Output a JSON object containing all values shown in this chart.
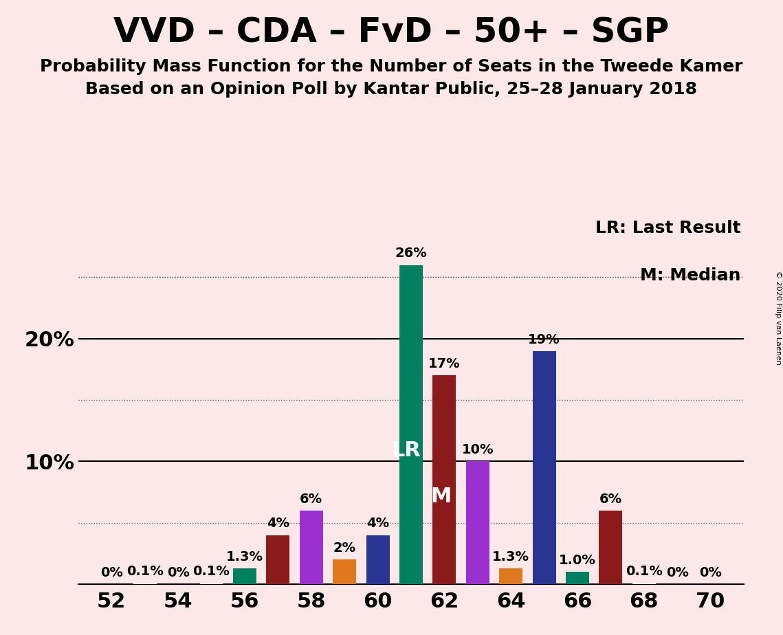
{
  "title": "VVD – CDA – FvD – 50+ – SGP",
  "subtitle1": "Probability Mass Function for the Number of Seats in the Tweede Kamer",
  "subtitle2": "Based on an Opinion Poll by Kantar Public, 25–28 January 2018",
  "copyright": "© 2020 Filip van Laenen",
  "legend_lr": "LR: Last Result",
  "legend_m": "M: Median",
  "background_color": "#fce8e8",
  "bars": [
    {
      "seat": 52,
      "value": 0.0,
      "color": "#fce8e8",
      "label": "0%",
      "lr": false,
      "median": false
    },
    {
      "seat": 53,
      "value": 0.1,
      "color": "#fce8e8",
      "label": "0.1%",
      "lr": false,
      "median": false
    },
    {
      "seat": 54,
      "value": 0.0,
      "color": "#fce8e8",
      "label": "0%",
      "lr": false,
      "median": false
    },
    {
      "seat": 55,
      "value": 0.1,
      "color": "#fce8e8",
      "label": "0.1%",
      "lr": false,
      "median": false
    },
    {
      "seat": 56,
      "value": 1.3,
      "color": "#008060",
      "label": "1.3%",
      "lr": false,
      "median": false
    },
    {
      "seat": 57,
      "value": 4.0,
      "color": "#8b1a1a",
      "label": "4%",
      "lr": false,
      "median": false
    },
    {
      "seat": 58,
      "value": 6.0,
      "color": "#9b30d0",
      "label": "6%",
      "lr": false,
      "median": false
    },
    {
      "seat": 59,
      "value": 2.0,
      "color": "#e07820",
      "label": "2%",
      "lr": false,
      "median": false
    },
    {
      "seat": 60,
      "value": 4.0,
      "color": "#283593",
      "label": "4%",
      "lr": false,
      "median": false
    },
    {
      "seat": 61,
      "value": 26.0,
      "color": "#008060",
      "label": "26%",
      "lr": true,
      "median": false
    },
    {
      "seat": 62,
      "value": 17.0,
      "color": "#8b1a1a",
      "label": "17%",
      "lr": false,
      "median": true
    },
    {
      "seat": 63,
      "value": 10.0,
      "color": "#9b30d0",
      "label": "10%",
      "lr": false,
      "median": false
    },
    {
      "seat": 64,
      "value": 1.3,
      "color": "#e07820",
      "label": "1.3%",
      "lr": false,
      "median": false
    },
    {
      "seat": 65,
      "value": 19.0,
      "color": "#283593",
      "label": "19%",
      "lr": false,
      "median": false
    },
    {
      "seat": 66,
      "value": 1.0,
      "color": "#008060",
      "label": "1.0%",
      "lr": false,
      "median": false
    },
    {
      "seat": 67,
      "value": 6.0,
      "color": "#8b1a1a",
      "label": "6%",
      "lr": false,
      "median": false
    },
    {
      "seat": 68,
      "value": 0.1,
      "color": "#fce8e8",
      "label": "0.1%",
      "lr": false,
      "median": false
    },
    {
      "seat": 69,
      "value": 0.0,
      "color": "#fce8e8",
      "label": "0%",
      "lr": false,
      "median": false
    },
    {
      "seat": 70,
      "value": 0.0,
      "color": "#fce8e8",
      "label": "0%",
      "lr": false,
      "median": false
    }
  ],
  "xlim": [
    51,
    71
  ],
  "ylim": [
    0,
    30
  ],
  "yticks_solid": [
    10,
    20
  ],
  "ytick_labels_solid": [
    "10%",
    "20%"
  ],
  "yticks_dotted": [
    5,
    15,
    25
  ],
  "xticks": [
    52,
    54,
    56,
    58,
    60,
    62,
    64,
    66,
    68,
    70
  ],
  "bar_width": 0.7,
  "title_fontsize": 36,
  "subtitle_fontsize": 18,
  "axis_fontsize": 22,
  "label_fontsize": 14,
  "lr_m_fontsize": 22,
  "legend_fontsize": 18,
  "copyright_fontsize": 8
}
